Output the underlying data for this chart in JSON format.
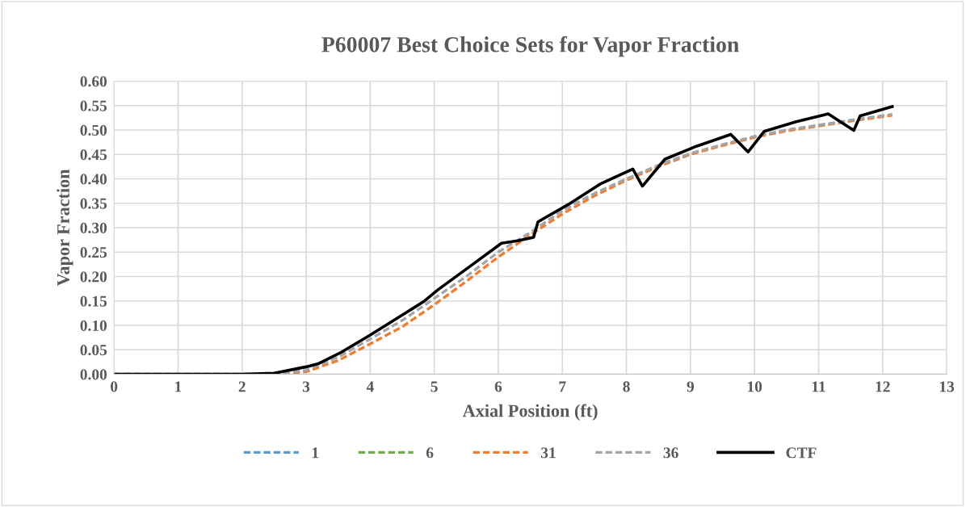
{
  "chart_data": {
    "type": "line",
    "title": "P60007 Best Choice Sets for Vapor Fraction",
    "xlabel": "Axial Position (ft)",
    "ylabel": "Vapor Fraction",
    "xlim": [
      0,
      13
    ],
    "xticks": [
      0,
      1,
      2,
      3,
      4,
      5,
      6,
      7,
      8,
      9,
      10,
      11,
      12,
      13
    ],
    "ylim": [
      0,
      0.6
    ],
    "yticks": [
      {
        "value": 0,
        "label": "0.00"
      },
      {
        "value": 0.05,
        "label": "0.05"
      },
      {
        "value": 0.1,
        "label": "0.10"
      },
      {
        "value": 0.15,
        "label": "0.15"
      },
      {
        "value": 0.2,
        "label": "0.20"
      },
      {
        "value": 0.25,
        "label": "0.25"
      },
      {
        "value": 0.3,
        "label": "0.30"
      },
      {
        "value": 0.35,
        "label": "0.35"
      },
      {
        "value": 0.4,
        "label": "0.40"
      },
      {
        "value": 0.45,
        "label": "0.45"
      },
      {
        "value": 0.5,
        "label": "0.50"
      },
      {
        "value": 0.55,
        "label": "0.55"
      },
      {
        "value": 0.6,
        "label": "0.60"
      }
    ],
    "grid": true,
    "legend": "bottom",
    "marker": "none",
    "series": [
      {
        "name": "1",
        "color": "#5b9bd5",
        "line_style": "dashed"
      },
      {
        "name": "6",
        "color": "#70ad47",
        "line_style": "dashed"
      },
      {
        "name": "31",
        "color": "#ed7d31",
        "line_style": "dashed",
        "x": [
          0,
          2.5,
          3.0,
          3.5,
          4.0,
          4.5,
          5.0,
          5.5,
          6.0,
          6.5,
          7.0,
          7.5,
          8.0,
          8.5,
          9.0,
          9.5,
          10.0,
          10.5,
          11.0,
          11.5,
          12.15
        ],
        "values": [
          0,
          0,
          0.005,
          0.028,
          0.062,
          0.097,
          0.142,
          0.19,
          0.24,
          0.285,
          0.328,
          0.365,
          0.397,
          0.425,
          0.45,
          0.468,
          0.485,
          0.498,
          0.508,
          0.518,
          0.53
        ]
      },
      {
        "name": "36",
        "color": "#a5a5a5",
        "line_style": "dashed",
        "x": [
          0,
          2.5,
          3.0,
          3.5,
          4.0,
          4.5,
          5.0,
          5.5,
          6.0,
          6.5,
          7.0,
          7.5,
          8.0,
          8.5,
          9.0,
          9.5,
          10.0,
          10.5,
          11.0,
          11.5,
          12.15
        ],
        "values": [
          0,
          0,
          0.008,
          0.035,
          0.072,
          0.11,
          0.155,
          0.2,
          0.25,
          0.29,
          0.335,
          0.37,
          0.4,
          0.428,
          0.452,
          0.47,
          0.487,
          0.5,
          0.51,
          0.52,
          0.532
        ]
      },
      {
        "name": "CTF",
        "color": "#000000",
        "line_style": "solid",
        "x": [
          0,
          2.0,
          2.5,
          3.0,
          3.2,
          3.55,
          4.0,
          4.55,
          4.85,
          5.05,
          5.55,
          6.05,
          6.3,
          6.55,
          6.62,
          7.1,
          7.6,
          8.1,
          8.25,
          8.6,
          9.1,
          9.63,
          9.9,
          10.15,
          10.65,
          11.15,
          11.55,
          11.65,
          12.15
        ],
        "values": [
          0,
          0,
          0.002,
          0.015,
          0.022,
          0.045,
          0.08,
          0.125,
          0.15,
          0.172,
          0.22,
          0.268,
          0.273,
          0.28,
          0.312,
          0.348,
          0.39,
          0.42,
          0.385,
          0.44,
          0.467,
          0.491,
          0.455,
          0.497,
          0.517,
          0.533,
          0.499,
          0.529,
          0.548
        ]
      }
    ]
  }
}
